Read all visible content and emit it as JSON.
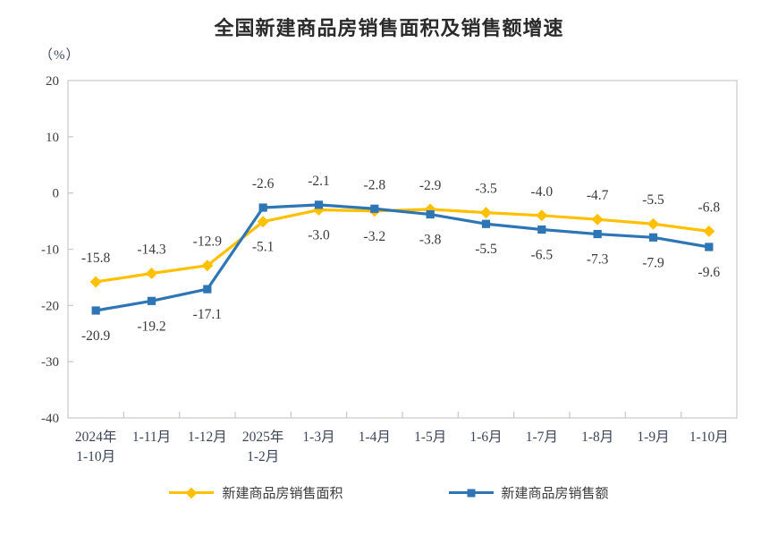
{
  "chart_data": {
    "type": "line",
    "title": "全国新建商品房销售面积及销售额增速",
    "unit_label": "（%）",
    "ylabel": "",
    "xlabel": "",
    "ylim": [
      -40,
      20
    ],
    "ytick_step": 10,
    "yticks": [
      20,
      10,
      0,
      -10,
      -20,
      -30,
      -40
    ],
    "grid": false,
    "legend_position": "bottom",
    "categories": [
      [
        "2024年",
        "1-10月"
      ],
      [
        "1-11月"
      ],
      [
        "1-12月"
      ],
      [
        "2025年",
        "1-2月"
      ],
      [
        "1-3月"
      ],
      [
        "1-4月"
      ],
      [
        "1-5月"
      ],
      [
        "1-6月"
      ],
      [
        "1-7月"
      ],
      [
        "1-8月"
      ],
      [
        "1-9月"
      ],
      [
        "1-10月"
      ]
    ],
    "series": [
      {
        "name": "新建商品房销售面积",
        "color": "#FFC000",
        "marker": "diamond",
        "values": [
          -15.8,
          -14.3,
          -12.9,
          -5.1,
          -3.0,
          -3.2,
          -2.9,
          -3.5,
          -4.0,
          -4.7,
          -5.5,
          -6.8
        ],
        "label_side": [
          "above",
          "above",
          "above",
          "below",
          "below",
          "below",
          "above",
          "above",
          "above",
          "above",
          "above",
          "above"
        ]
      },
      {
        "name": "新建商品房销售额",
        "color": "#2E75B6",
        "marker": "square",
        "values": [
          -20.9,
          -19.2,
          -17.1,
          -2.6,
          -2.1,
          -2.8,
          -3.8,
          -5.5,
          -6.5,
          -7.3,
          -7.9,
          -9.6
        ],
        "label_side": [
          "below",
          "below",
          "below",
          "above",
          "above",
          "above",
          "below",
          "below",
          "below",
          "below",
          "below",
          "below"
        ]
      }
    ]
  }
}
